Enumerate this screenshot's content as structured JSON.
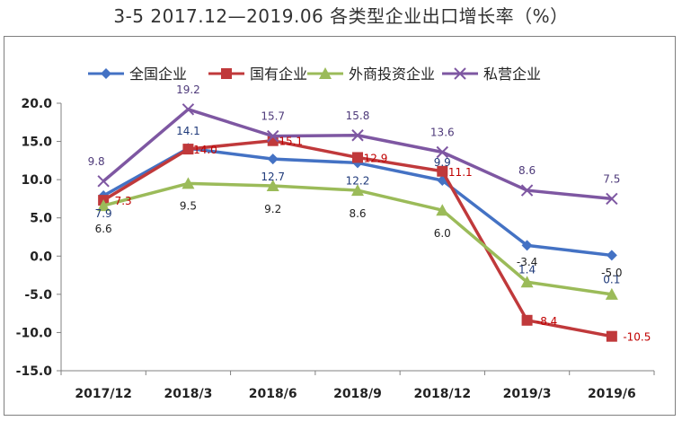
{
  "page": {
    "title": "3-5   2017.12—2019.06 各类型企业出口增长率（%）"
  },
  "chart_data": {
    "type": "line",
    "title": "3-5   2017.12—2019.06 各类型企业出口增长率（%）",
    "categories": [
      "2017/12",
      "2018/3",
      "2018/6",
      "2018/9",
      "2018/12",
      "2019/3",
      "2019/6"
    ],
    "ylim": [
      -15,
      20
    ],
    "yticks": [
      "20.0",
      "15.0",
      "10.0",
      "5.0",
      "0.0",
      "-5.0",
      "-10.0",
      "-15.0"
    ],
    "legend_position": "top",
    "series": [
      {
        "name": "全国企业",
        "color": "#4472c4",
        "label_color": "#1f3a7a",
        "marker": "diamond",
        "values": [
          7.9,
          14.1,
          12.7,
          12.2,
          9.9,
          1.4,
          0.1
        ],
        "labels": [
          "7.9",
          "14.1",
          "12.7",
          "12.2",
          "9.9",
          "1.4",
          "0.1"
        ]
      },
      {
        "name": "国有企业",
        "color": "#c0393b",
        "label_color": "#c00000",
        "marker": "square",
        "values": [
          7.3,
          14.0,
          15.1,
          12.9,
          11.1,
          -8.4,
          -10.5
        ],
        "labels": [
          "7.3",
          "14.0",
          "15.1",
          "12.9",
          "11.1",
          "-8.4",
          "-10.5"
        ]
      },
      {
        "name": "外商投资企业",
        "color": "#9bbb59",
        "label_color": "#222222",
        "marker": "triangle",
        "values": [
          6.6,
          9.5,
          9.2,
          8.6,
          6.0,
          -3.4,
          -5.0
        ],
        "labels": [
          "6.6",
          "9.5",
          "9.2",
          "8.6",
          "6.0",
          "-3.4",
          "-5.0"
        ]
      },
      {
        "name": "私营企业",
        "color": "#7e57a2",
        "label_color": "#4e3a7a",
        "marker": "x",
        "values": [
          9.8,
          19.2,
          15.7,
          15.8,
          13.6,
          8.6,
          7.5
        ],
        "labels": [
          "9.8",
          "19.2",
          "15.7",
          "15.8",
          "13.6",
          "8.6",
          "7.5"
        ]
      }
    ]
  }
}
